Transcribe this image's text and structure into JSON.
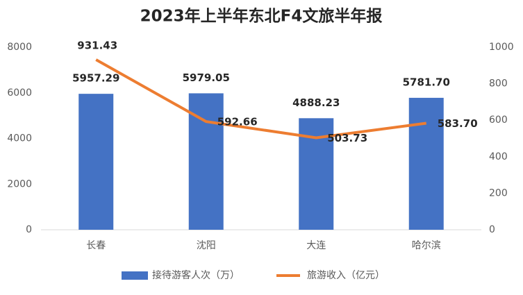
{
  "chart_data": {
    "type": "bar",
    "title": "2023年上半年东北F4文旅半年报",
    "categories": [
      "长春",
      "沈阳",
      "大连",
      "哈尔滨"
    ],
    "series": [
      {
        "name": "接待游客人次（万）",
        "color": "#4472c4",
        "type": "bar",
        "values": [
          5957.29,
          5979.05,
          4888.23,
          5781.7
        ],
        "value_labels": [
          "5957.29",
          "5979.05",
          "4888.23",
          "5781.70"
        ]
      },
      {
        "name": "旅游收入（亿元）",
        "color": "#ed7d31",
        "type": "line",
        "axis": "y2",
        "values": [
          931.43,
          592.66,
          503.73,
          583.7
        ],
        "value_labels": [
          "931.43",
          "592.66",
          "503.73",
          "583.70"
        ]
      }
    ],
    "ylim": [
      0,
      8000
    ],
    "yticks": [
      0,
      2000,
      4000,
      6000,
      8000
    ],
    "y2lim": [
      0,
      1000
    ],
    "y2ticks": [
      0,
      200,
      400,
      600,
      800,
      1000
    ],
    "grid": false,
    "legend": "bottom"
  }
}
